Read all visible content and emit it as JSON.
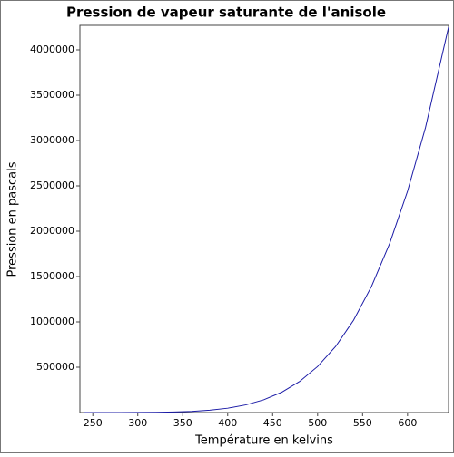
{
  "chart_data": {
    "type": "line",
    "title": "Pression de vapeur saturante de l'anisole",
    "x_label": "Température en kelvins",
    "y_label": "Pression en pascals",
    "x": [
      240,
      260,
      280,
      300,
      320,
      340,
      360,
      380,
      400,
      420,
      440,
      460,
      480,
      500,
      520,
      540,
      560,
      580,
      600,
      620,
      645.6
    ],
    "series": [
      {
        "name": "anisole",
        "color": "#1a1aa6",
        "values": [
          19,
          85,
          309,
          948,
          2530,
          6020,
          12990,
          25880,
          48100,
          84300,
          140400,
          223600,
          342700,
          508000,
          728800,
          1019000,
          1393000,
          1862000,
          2441000,
          3144000,
          4250000
        ]
      }
    ],
    "xlim": [
      235.65,
      645.6
    ],
    "ylim": [
      0,
      4270000
    ],
    "xticks": [
      250,
      300,
      350,
      400,
      450,
      500,
      550,
      600
    ],
    "yticks": [
      500000,
      1000000,
      1500000,
      2000000,
      2500000,
      3000000,
      3500000,
      4000000
    ],
    "grid": false
  }
}
